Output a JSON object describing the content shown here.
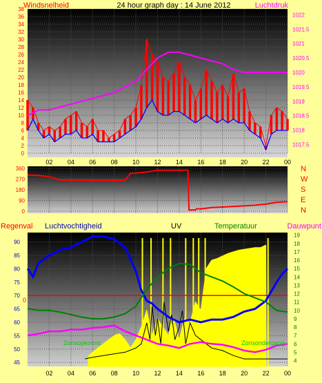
{
  "header": {
    "left_label": "Windsnelheid",
    "title": "24 hour graph day : 14 June 2012",
    "right_label": "Luchtdruk"
  },
  "colors": {
    "background": "#ffff99",
    "wind_speed": "#ff0000",
    "wind_gust": "#ff0000",
    "wind_avg": "#0000ff",
    "pressure": "#ff00ff",
    "direction": "#ff0000",
    "humidity": "#0000ff",
    "temperature": "#008000",
    "dewpoint": "#ff00ff",
    "uv": "#000000",
    "rain": "#ff0000",
    "sun": "#ffff00"
  },
  "time_ticks": [
    "02",
    "04",
    "06",
    "08",
    "10",
    "12",
    "14",
    "16",
    "18",
    "20",
    "22",
    "00"
  ],
  "chart_data": [
    {
      "id": "wind_pressure",
      "type": "line",
      "y_left": {
        "ticks": [
          "0",
          "2",
          "4",
          "6",
          "8",
          "10",
          "12",
          "14",
          "16",
          "18",
          "20",
          "22",
          "24",
          "26",
          "28",
          "30",
          "32",
          "34",
          "36",
          "38"
        ],
        "range": [
          0,
          38
        ]
      },
      "y_right": {
        "ticks": [
          "1017.5",
          "1018",
          "1018.5",
          "1019",
          "1019.5",
          "1020",
          "1020.5",
          "1021",
          "1021.5",
          "1022"
        ],
        "range": [
          1017.2,
          1022.2
        ]
      },
      "series": [
        {
          "key": "gust",
          "hours": [
            0,
            0.5,
            1,
            1.5,
            2,
            2.5,
            3,
            3.5,
            4,
            4.5,
            5,
            5.5,
            6,
            6.5,
            7,
            7.5,
            8,
            8.5,
            9,
            9.5,
            10,
            10.5,
            11,
            11.5,
            12,
            12.5,
            13,
            13.5,
            14,
            14.5,
            15,
            15.5,
            16,
            16.5,
            17,
            17.5,
            18,
            18.5,
            19,
            19.5,
            20,
            20.5,
            21,
            21.5,
            22,
            22.5,
            23,
            23.5,
            24
          ],
          "values": [
            14,
            12,
            8,
            6,
            7,
            6,
            7,
            9,
            10,
            11,
            8,
            7,
            9,
            6,
            6,
            4,
            5,
            6,
            9,
            10,
            12,
            18,
            30,
            26,
            24,
            20,
            19,
            21,
            24,
            20,
            18,
            14,
            17,
            22,
            19,
            16,
            18,
            15,
            21,
            16,
            17,
            11,
            8,
            7,
            2,
            10,
            12,
            11,
            9
          ]
        },
        {
          "key": "avg",
          "hours": [
            0,
            0.5,
            1,
            1.5,
            2,
            2.5,
            3,
            3.5,
            4,
            4.5,
            5,
            5.5,
            6,
            6.5,
            7,
            7.5,
            8,
            8.5,
            9,
            9.5,
            10,
            10.5,
            11,
            11.5,
            12,
            12.5,
            13,
            13.5,
            14,
            14.5,
            15,
            15.5,
            16,
            16.5,
            17,
            17.5,
            18,
            18.5,
            19,
            19.5,
            20,
            20.5,
            21,
            21.5,
            22,
            22.5,
            23,
            23.5,
            24
          ],
          "values": [
            6,
            9,
            6,
            4,
            5,
            3,
            4,
            5,
            5,
            6,
            4,
            4,
            5,
            3,
            3,
            3,
            3,
            4,
            5,
            6,
            7,
            9,
            12,
            14,
            11,
            10,
            10,
            11,
            11,
            10,
            9,
            8,
            9,
            10,
            9,
            8,
            9,
            8,
            9,
            8,
            8,
            6,
            5,
            4,
            1,
            5,
            6,
            6,
            6
          ]
        },
        {
          "key": "pressure",
          "hours": [
            0,
            1,
            2,
            3,
            4,
            5,
            6,
            7,
            8,
            9,
            10,
            11,
            12,
            13,
            14,
            15,
            16,
            17,
            18,
            19,
            20,
            21,
            22,
            23,
            24
          ],
          "values": [
            1018.5,
            1018.7,
            1018.7,
            1018.8,
            1018.9,
            1019.0,
            1019.1,
            1019.2,
            1019.3,
            1019.5,
            1019.7,
            1020.1,
            1020.5,
            1020.7,
            1020.7,
            1020.6,
            1020.5,
            1020.4,
            1020.3,
            1020.1,
            1020.0,
            1020.0,
            1020.0,
            1020.0,
            1020.0
          ]
        }
      ]
    },
    {
      "id": "wind_direction",
      "type": "line",
      "y_left": {
        "ticks": [
          "0",
          "90",
          "180",
          "270",
          "360"
        ],
        "range": [
          0,
          360
        ]
      },
      "y_right": {
        "ticks": [
          "N",
          "W",
          "S",
          "E",
          "N"
        ]
      },
      "series": [
        {
          "key": "direction",
          "hours": [
            0,
            1,
            2,
            3,
            4,
            5,
            6,
            7,
            8,
            9,
            9.5,
            10,
            11,
            12,
            13,
            14,
            14.8,
            14.9,
            15.5,
            15.6,
            16,
            17,
            18,
            19,
            20,
            21,
            22,
            23,
            24
          ],
          "values": [
            305,
            300,
            290,
            262,
            262,
            262,
            260,
            260,
            260,
            262,
            318,
            320,
            330,
            345,
            345,
            345,
            345,
            10,
            10,
            20,
            20,
            30,
            35,
            40,
            45,
            50,
            60,
            75,
            80
          ]
        }
      ]
    },
    {
      "id": "climate",
      "type": "line",
      "labels": {
        "left": "Regenval",
        "humidity": "Luchtvochtigheid",
        "uv": "UV",
        "temperature": "Temperatuur",
        "dewpoint": "Dauwpunt",
        "sunrise": "Zonsopkomst",
        "sunset": "Zonsondergang"
      },
      "y_left": {
        "ticks": [
          "45",
          "50",
          "55",
          "60",
          "65",
          "70",
          "75",
          "80",
          "85",
          "90"
        ],
        "range": [
          43.5,
          93.5
        ]
      },
      "y_right": {
        "ticks": [
          "4",
          "5",
          "6",
          "7",
          "8",
          "9",
          "10",
          "11",
          "12",
          "13",
          "14",
          "15",
          "16",
          "17",
          "18",
          "19"
        ],
        "range": [
          3.3,
          19.3
        ]
      },
      "rain_marker": {
        "label": "0",
        "value": 70
      },
      "series": [
        {
          "key": "humidity",
          "hours": [
            0,
            0.5,
            1,
            2,
            3,
            4,
            5,
            6,
            7,
            8,
            9,
            10,
            10.5,
            11,
            11.5,
            12,
            13,
            14,
            15,
            16,
            17,
            18,
            19,
            20,
            21,
            22,
            23,
            23.5,
            24
          ],
          "values": [
            80,
            77,
            82,
            85,
            87,
            88,
            90,
            92,
            92,
            91,
            88,
            79,
            72,
            68,
            67,
            65,
            62,
            60,
            61,
            60,
            61,
            61,
            62,
            64,
            65,
            68,
            75,
            78,
            80
          ]
        },
        {
          "key": "temperature",
          "hours": [
            0,
            1,
            2,
            3,
            4,
            5,
            6,
            7,
            8,
            9,
            10,
            11,
            12,
            13,
            14,
            15,
            16,
            17,
            18,
            19,
            20,
            21,
            22,
            23,
            24
          ],
          "values": [
            10.2,
            10.0,
            10.0,
            9.8,
            9.5,
            9.2,
            9.0,
            9.0,
            9.2,
            9.6,
            10.5,
            12.5,
            14.0,
            15.0,
            15.6,
            15.5,
            14.5,
            14.0,
            13.5,
            12.8,
            12.0,
            11.5,
            11.0,
            10.0,
            9.8
          ]
        },
        {
          "key": "dewpoint",
          "hours": [
            0,
            1,
            2,
            3,
            4,
            5,
            6,
            7,
            8,
            9,
            10,
            11,
            12,
            13,
            14,
            15,
            16,
            17,
            18,
            19,
            20,
            21,
            22,
            23,
            24
          ],
          "values": [
            7.0,
            7.2,
            7.5,
            7.5,
            7.7,
            7.7,
            7.9,
            8.0,
            8.2,
            7.5,
            7.0,
            6.5,
            6.0,
            5.8,
            5.5,
            6.0,
            6.2,
            6.0,
            5.9,
            5.6,
            5.2,
            5.0,
            5.3,
            5.8,
            6.0
          ]
        },
        {
          "key": "uv",
          "hours": [
            5.3,
            6,
            7,
            8,
            9,
            10,
            10.5,
            11,
            11.3,
            11.5,
            11.8,
            12,
            12.3,
            12.6,
            13,
            13.3,
            13.6,
            14,
            14.3,
            14.6,
            15,
            15.5,
            16,
            16.5,
            17,
            18,
            19,
            19.5,
            20,
            21,
            21.5,
            22,
            23,
            24
          ],
          "values": [
            4.2,
            4.4,
            4.6,
            4.8,
            5.0,
            5.5,
            6.0,
            8.5,
            6.5,
            10.5,
            7.0,
            9.0,
            6.0,
            11.0,
            7.5,
            9.5,
            6.5,
            8.0,
            10.0,
            6.0,
            8.5,
            7.0,
            6.5,
            6.0,
            5.5,
            5.2,
            4.6,
            4.4,
            4.2,
            4.2,
            4.2,
            4.2,
            4.2,
            4.2
          ]
        },
        {
          "key": "sun",
          "hours": [
            5.6,
            6,
            6.5,
            7,
            7.5,
            8,
            8.5,
            9,
            9.5,
            10,
            10.5,
            11,
            11.5,
            12,
            12.5,
            13,
            13.5,
            14,
            14.5,
            15,
            15.5,
            16,
            16.5,
            17,
            17.5,
            18,
            18.5,
            19,
            19.5,
            20,
            20.5,
            21,
            21.5,
            22
          ],
          "values": [
            4.5,
            5,
            5.5,
            6,
            6.5,
            7,
            7.2,
            6.5,
            5.5,
            6.5,
            8,
            10,
            7,
            9,
            8,
            7,
            9,
            6.5,
            9,
            8.5,
            11,
            10,
            15,
            16,
            16.2,
            16.5,
            16.8,
            17,
            17.2,
            17.3,
            17.4,
            17.5,
            17.5,
            17.8
          ]
        }
      ]
    }
  ],
  "dir_labels": [
    "N",
    "W",
    "S",
    "E",
    "N"
  ],
  "bottom_labels": {
    "rain": "Regenval",
    "humidity": "Luchtvochtigheid",
    "uv": "UV",
    "temperature": "Temperatuur",
    "dewpoint": "Dauwpunt",
    "sunrise": "Zonsopkomst",
    "sunset": "Zonsondergang",
    "rain_zero": "0"
  }
}
